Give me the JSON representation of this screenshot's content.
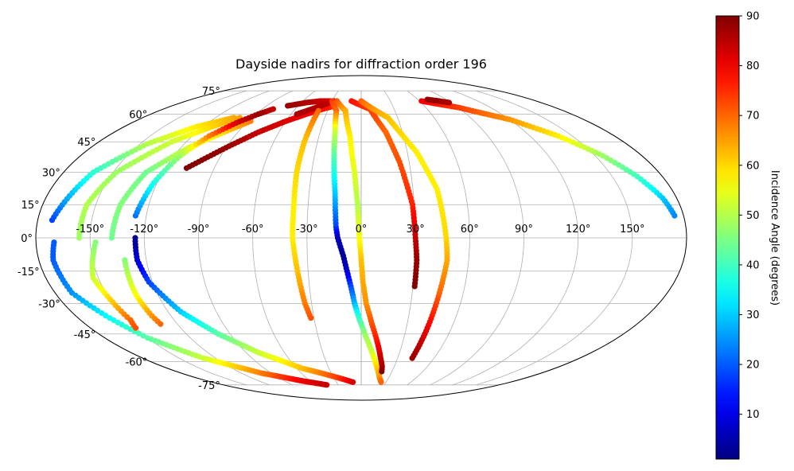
{
  "chart_data": {
    "type": "scatter",
    "projection": "mollweide",
    "title": "Dayside nadirs for diffraction order 196",
    "xlabel": "",
    "ylabel": "",
    "xlim": [
      -180,
      180
    ],
    "ylim": [
      -90,
      90
    ],
    "grid": true,
    "legend": "none",
    "lon_ticks": [
      -150,
      -120,
      -90,
      -60,
      -30,
      0,
      30,
      60,
      90,
      120,
      150
    ],
    "lon_tick_labels": [
      "-150°",
      "-120°",
      "-90°",
      "-60°",
      "-30°",
      "0°",
      "30°",
      "60°",
      "90°",
      "120°",
      "150°"
    ],
    "lat_ticks": [
      -75,
      -60,
      -45,
      -30,
      -15,
      0,
      15,
      30,
      45,
      60,
      75
    ],
    "lat_tick_labels": [
      "-75°",
      "-60°",
      "-45°",
      "-30°",
      "-15°",
      "0°",
      "15°",
      "30°",
      "45°",
      "60°",
      "75°"
    ],
    "colorbar": {
      "label": "Incidence Angle (degrees)",
      "colormap": "jet",
      "range": [
        1,
        90
      ],
      "ticks": [
        10,
        20,
        30,
        40,
        50,
        60,
        70,
        80,
        90
      ],
      "tick_labels": [
        "10",
        "20",
        "30",
        "40",
        "50",
        "60",
        "70",
        "80",
        "90"
      ]
    },
    "series": [
      {
        "points": [
          [
            -170,
            -2,
            20
          ],
          [
            -172,
            -10,
            20
          ],
          [
            -170,
            -25,
            25
          ],
          [
            -160,
            -37,
            35
          ],
          [
            -150,
            -47,
            42
          ],
          [
            -130,
            -58,
            52
          ],
          [
            -100,
            -67,
            68
          ],
          [
            -70,
            -72,
            80
          ],
          [
            -45,
            -75,
            84
          ]
        ]
      },
      {
        "points": [
          [
            -172,
            8,
            18
          ],
          [
            -162,
            30,
            38
          ],
          [
            -145,
            44,
            50
          ],
          [
            -125,
            53,
            58
          ],
          [
            -105,
            58,
            64
          ]
        ]
      },
      {
        "points": [
          [
            -147,
            -2,
            46
          ],
          [
            -153,
            -18,
            52
          ],
          [
            -150,
            -28,
            60
          ],
          [
            -148,
            -38,
            70
          ],
          [
            -150,
            -42,
            72
          ]
        ]
      },
      {
        "points": [
          [
            -156,
            0,
            48
          ],
          [
            -155,
            15,
            50
          ],
          [
            -148,
            30,
            48
          ],
          [
            -130,
            45,
            52
          ],
          [
            -113,
            53,
            60
          ],
          [
            -100,
            58,
            65
          ]
        ]
      },
      {
        "points": [
          [
            -132,
            -10,
            46
          ],
          [
            -133,
            -26,
            56
          ],
          [
            -132,
            -36,
            66
          ],
          [
            -131,
            -40,
            70
          ]
        ]
      },
      {
        "points": [
          [
            -138,
            0,
            44
          ],
          [
            -136,
            15,
            46
          ],
          [
            -130,
            30,
            44
          ],
          [
            -115,
            42,
            52
          ],
          [
            -100,
            50,
            60
          ],
          [
            -88,
            56,
            68
          ]
        ]
      },
      {
        "points": [
          [
            -125,
            0,
            2
          ],
          [
            -125,
            -10,
            8
          ],
          [
            -122,
            -20,
            18
          ],
          [
            -112,
            -34,
            30
          ],
          [
            -98,
            -45,
            42
          ],
          [
            -80,
            -55,
            52
          ],
          [
            -55,
            -64,
            62
          ],
          [
            -25,
            -70,
            74
          ],
          [
            -10,
            -73,
            82
          ]
        ]
      },
      {
        "points": [
          [
            -126,
            10,
            22
          ],
          [
            -122,
            25,
            36
          ],
          [
            -116,
            38,
            48
          ],
          [
            -108,
            48,
            68
          ],
          [
            -98,
            55,
            82
          ],
          [
            -88,
            60,
            88
          ],
          [
            -80,
            63,
            84
          ]
        ]
      },
      {
        "points": [
          [
            -107,
            32,
            90
          ],
          [
            -90,
            42,
            88
          ],
          [
            -75,
            50,
            84
          ],
          [
            -60,
            56,
            82
          ],
          [
            -47,
            60,
            80
          ],
          [
            -35,
            63,
            78
          ],
          [
            -25,
            65,
            76
          ]
        ]
      },
      {
        "points": [
          [
            -70,
            65,
            88
          ],
          [
            -55,
            67,
            86
          ],
          [
            -42,
            68,
            84
          ],
          [
            -30,
            68,
            82
          ]
        ]
      },
      {
        "points": [
          [
            -55,
            60,
            86
          ],
          [
            -45,
            63,
            86
          ],
          [
            -35,
            66,
            85
          ],
          [
            -28,
            68,
            84
          ]
        ]
      },
      {
        "points": [
          [
            -38,
            62,
            70
          ],
          [
            -39,
            45,
            62
          ],
          [
            -39,
            30,
            60
          ],
          [
            -38,
            15,
            58
          ],
          [
            -38,
            0,
            58
          ],
          [
            -36,
            -15,
            62
          ],
          [
            -34,
            -30,
            68
          ],
          [
            -32,
            -37,
            72
          ]
        ]
      },
      {
        "points": [
          [
            -30,
            68,
            74
          ],
          [
            -22,
            62,
            70
          ],
          [
            -19,
            50,
            52
          ],
          [
            -17,
            35,
            40
          ],
          [
            -15,
            20,
            30
          ],
          [
            -14,
            5,
            18
          ],
          [
            -13,
            0,
            6
          ],
          [
            -10,
            -8,
            3
          ],
          [
            -8,
            -15,
            8
          ],
          [
            -6,
            -22,
            18
          ],
          [
            -4,
            -30,
            28
          ],
          [
            -1,
            -38,
            40
          ],
          [
            3,
            -46,
            48
          ],
          [
            8,
            -54,
            52
          ],
          [
            14,
            -63,
            60
          ],
          [
            20,
            -70,
            66
          ],
          [
            24,
            -73,
            70
          ]
        ]
      },
      {
        "points": [
          [
            -25,
            68,
            72
          ],
          [
            -14,
            62,
            64
          ],
          [
            -8,
            48,
            58
          ],
          [
            -4,
            30,
            54
          ],
          [
            -2,
            15,
            50
          ],
          [
            -1,
            0,
            56
          ],
          [
            0,
            -10,
            62
          ],
          [
            1,
            -20,
            64
          ],
          [
            3,
            -30,
            66
          ],
          [
            7,
            -40,
            72
          ],
          [
            12,
            -50,
            78
          ],
          [
            16,
            -58,
            84
          ],
          [
            19,
            -63,
            86
          ],
          [
            20,
            -66,
            90
          ]
        ]
      },
      {
        "points": [
          [
            -10,
            68,
            78
          ],
          [
            8,
            63,
            74
          ],
          [
            18,
            50,
            70
          ],
          [
            24,
            35,
            72
          ],
          [
            29,
            15,
            76
          ],
          [
            30,
            0,
            84
          ],
          [
            31,
            -10,
            88
          ],
          [
            31,
            -22,
            90
          ]
        ]
      },
      {
        "points": [
          [
            0,
            68,
            70
          ],
          [
            22,
            58,
            62
          ],
          [
            36,
            40,
            58
          ],
          [
            44,
            22,
            58
          ],
          [
            47,
            0,
            60
          ],
          [
            48,
            -10,
            64
          ],
          [
            46,
            -25,
            70
          ],
          [
            44,
            -42,
            80
          ],
          [
            42,
            -58,
            88
          ]
        ]
      },
      {
        "points": [
          [
            62,
            68,
            80
          ],
          [
            90,
            64,
            74
          ],
          [
            120,
            57,
            66
          ],
          [
            140,
            48,
            58
          ],
          [
            155,
            38,
            48
          ],
          [
            165,
            28,
            40
          ],
          [
            172,
            18,
            30
          ],
          [
            175,
            10,
            24
          ]
        ]
      },
      {
        "points": [
          [
            70,
            69,
            88
          ],
          [
            80,
            68,
            88
          ],
          [
            88,
            67,
            86
          ]
        ]
      }
    ]
  }
}
